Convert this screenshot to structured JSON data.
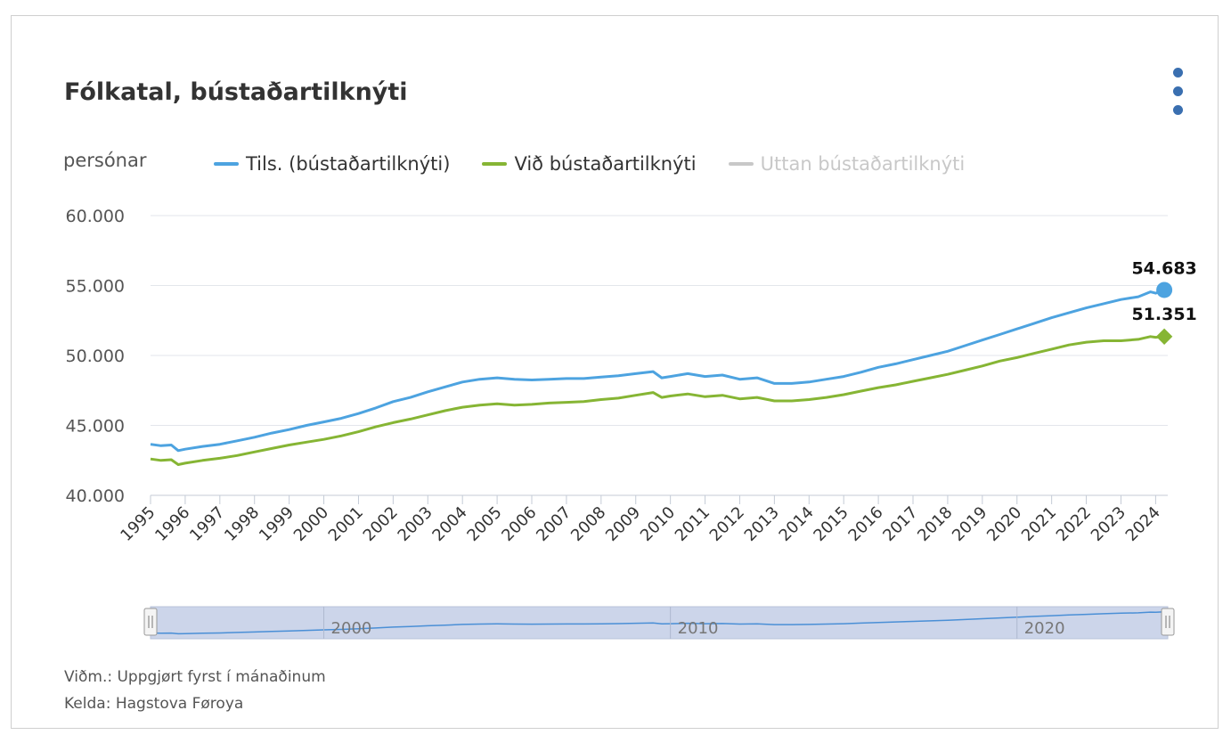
{
  "header": {
    "title": "Fólkatal, bústaðartilknýti",
    "unit": "persónar",
    "menu_icon": "more-vertical-icon"
  },
  "legend": [
    {
      "label": "Tils. (bústaðartilknýti)",
      "color": "#4da3e0",
      "visible": true
    },
    {
      "label": "Við bústaðartilknýti",
      "color": "#86b534",
      "visible": true
    },
    {
      "label": "Uttan bústaðartilknýti",
      "color": "#c8c8c8",
      "visible": false
    }
  ],
  "chart_data": {
    "type": "line",
    "x_label": "",
    "y_label": "persónar",
    "ylim": [
      40000,
      60000
    ],
    "y_ticks": [
      "60.000",
      "55.000",
      "50.000",
      "45.000",
      "40.000"
    ],
    "y_tick_values": [
      60000,
      55000,
      50000,
      45000,
      40000
    ],
    "x_range": [
      1995,
      2024.35
    ],
    "x_ticks": [
      "1995",
      "1996",
      "1997",
      "1998",
      "1999",
      "2000",
      "2001",
      "2002",
      "2003",
      "2004",
      "2005",
      "2006",
      "2007",
      "2008",
      "2009",
      "2010",
      "2011",
      "2012",
      "2013",
      "2014",
      "2015",
      "2016",
      "2017",
      "2018",
      "2019",
      "2020",
      "2021",
      "2022",
      "2023",
      "2024"
    ],
    "grid": true,
    "series": [
      {
        "name": "Tils. (bústaðartilknýti)",
        "color": "#4da3e0",
        "x": [
          1995.0,
          1995.3,
          1995.6,
          1995.8,
          1996.0,
          1996.5,
          1997.0,
          1997.5,
          1998.0,
          1998.5,
          1999.0,
          1999.5,
          2000.0,
          2000.5,
          2001.0,
          2001.5,
          2002.0,
          2002.5,
          2003.0,
          2003.5,
          2004.0,
          2004.5,
          2005.0,
          2005.5,
          2006.0,
          2006.5,
          2007.0,
          2007.5,
          2008.0,
          2008.5,
          2009.0,
          2009.5,
          2009.75,
          2010.0,
          2010.5,
          2011.0,
          2011.5,
          2012.0,
          2012.5,
          2013.0,
          2013.5,
          2014.0,
          2014.5,
          2015.0,
          2015.5,
          2016.0,
          2016.5,
          2017.0,
          2017.5,
          2018.0,
          2018.5,
          2019.0,
          2019.5,
          2020.0,
          2020.5,
          2021.0,
          2021.5,
          2022.0,
          2022.5,
          2023.0,
          2023.5,
          2023.85,
          2024.0,
          2024.25
        ],
        "values": [
          43650,
          43550,
          43600,
          43200,
          43300,
          43500,
          43650,
          43900,
          44150,
          44450,
          44700,
          45000,
          45250,
          45500,
          45850,
          46250,
          46700,
          47000,
          47400,
          47750,
          48100,
          48300,
          48400,
          48300,
          48250,
          48300,
          48350,
          48350,
          48450,
          48550,
          48700,
          48850,
          48400,
          48500,
          48700,
          48500,
          48600,
          48300,
          48400,
          48000,
          48000,
          48100,
          48300,
          48500,
          48800,
          49150,
          49400,
          49700,
          50000,
          50300,
          50700,
          51100,
          51500,
          51900,
          52300,
          52700,
          53050,
          53400,
          53700,
          54000,
          54200,
          54550,
          54450,
          54683
        ],
        "end_label": "54.683"
      },
      {
        "name": "Við bústaðartilknýti",
        "color": "#86b534",
        "x": [
          1995.0,
          1995.3,
          1995.6,
          1995.8,
          1996.0,
          1996.5,
          1997.0,
          1997.5,
          1998.0,
          1998.5,
          1999.0,
          1999.5,
          2000.0,
          2000.5,
          2001.0,
          2001.5,
          2002.0,
          2002.5,
          2003.0,
          2003.5,
          2004.0,
          2004.5,
          2005.0,
          2005.5,
          2006.0,
          2006.5,
          2007.0,
          2007.5,
          2008.0,
          2008.5,
          2009.0,
          2009.5,
          2009.75,
          2010.0,
          2010.5,
          2011.0,
          2011.5,
          2012.0,
          2012.5,
          2013.0,
          2013.5,
          2014.0,
          2014.5,
          2015.0,
          2015.5,
          2016.0,
          2016.5,
          2017.0,
          2017.5,
          2018.0,
          2018.5,
          2019.0,
          2019.5,
          2020.0,
          2020.5,
          2021.0,
          2021.5,
          2022.0,
          2022.5,
          2023.0,
          2023.5,
          2023.85,
          2024.0,
          2024.25
        ],
        "values": [
          42600,
          42500,
          42550,
          42200,
          42300,
          42500,
          42650,
          42850,
          43100,
          43350,
          43600,
          43800,
          44000,
          44250,
          44550,
          44900,
          45200,
          45450,
          45750,
          46050,
          46300,
          46450,
          46550,
          46450,
          46500,
          46600,
          46650,
          46700,
          46850,
          46950,
          47150,
          47350,
          47000,
          47100,
          47250,
          47050,
          47150,
          46900,
          47000,
          46750,
          46750,
          46850,
          47000,
          47200,
          47450,
          47700,
          47900,
          48150,
          48400,
          48650,
          48950,
          49250,
          49600,
          49850,
          50150,
          50450,
          50750,
          50950,
          51050,
          51050,
          51150,
          51350,
          51300,
          51351
        ],
        "end_label": "51.351"
      }
    ],
    "navigator": {
      "labels": [
        "2000",
        "2010",
        "2020"
      ],
      "handle_icon": "drag-handle-icon"
    }
  },
  "footer": {
    "note": "Viðm.: Uppgjørt fyrst í mánaðinum",
    "source": "Kelda: Hagstova Føroya"
  }
}
